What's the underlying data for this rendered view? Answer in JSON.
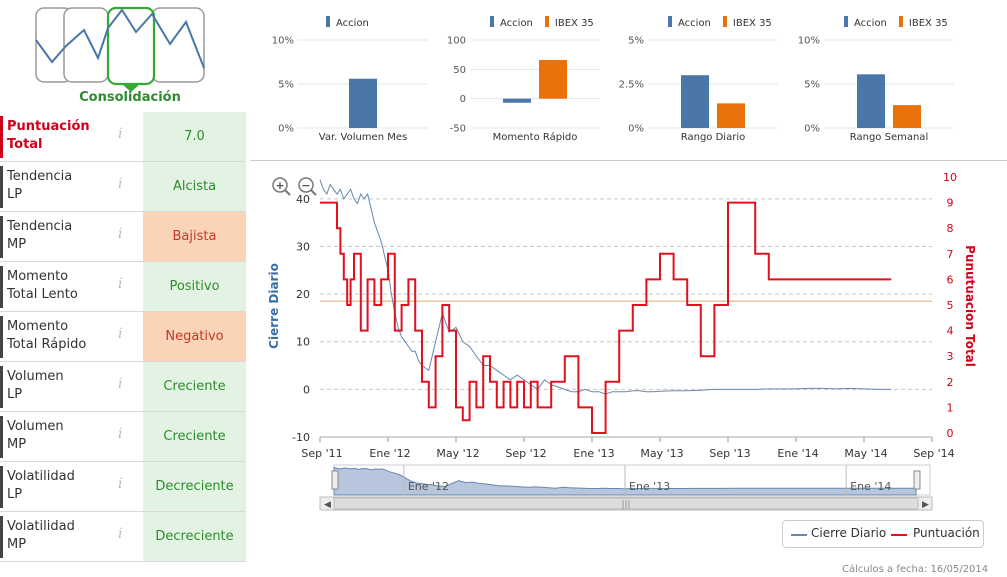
{
  "logo": {
    "label": "Consolidación"
  },
  "colors": {
    "accion": "#4a77a8",
    "ibex": "#e8710a",
    "score_line": "#e0101f",
    "price_line": "#6688b0",
    "ref_line": "#e7c89c",
    "green_bg": "#e3f3e3",
    "orange_bg": "#fbd3b6"
  },
  "scores": [
    {
      "name_l1": "Puntuación",
      "name_l2": "Total",
      "value": "7.0",
      "tone": "green",
      "highlight": true
    },
    {
      "name_l1": "Tendencia",
      "name_l2": "LP",
      "value": "Alcista",
      "tone": "green"
    },
    {
      "name_l1": "Tendencia",
      "name_l2": "MP",
      "value": "Bajista",
      "tone": "orange"
    },
    {
      "name_l1": "Momento",
      "name_l2": "Total Lento",
      "value": "Positivo",
      "tone": "green"
    },
    {
      "name_l1": "Momento",
      "name_l2": "Total Rápido",
      "value": "Negativo",
      "tone": "orange"
    },
    {
      "name_l1": "Volumen",
      "name_l2": "LP",
      "value": "Creciente",
      "tone": "green"
    },
    {
      "name_l1": "Volumen",
      "name_l2": "MP",
      "value": "Creciente",
      "tone": "green"
    },
    {
      "name_l1": "Volatilidad",
      "name_l2": "LP",
      "value": "Decreciente",
      "tone": "green"
    },
    {
      "name_l1": "Volatilidad",
      "name_l2": "MP",
      "value": "Decreciente",
      "tone": "green"
    }
  ],
  "info_glyph": "i",
  "chart_data": [
    {
      "type": "bar",
      "title": "",
      "legend": [
        "Accion"
      ],
      "categories": [
        "Var. Volumen Mes"
      ],
      "series": [
        {
          "name": "Accion",
          "values": [
            5.6
          ]
        }
      ],
      "yticks": [
        "10%",
        "5%",
        "0%"
      ],
      "ylim": [
        0,
        10
      ]
    },
    {
      "type": "bar",
      "title": "",
      "legend": [
        "Accion",
        "IBEX 35"
      ],
      "categories": [
        "Momento Rápido"
      ],
      "series": [
        {
          "name": "Accion",
          "values": [
            -7
          ]
        },
        {
          "name": "IBEX 35",
          "values": [
            66
          ]
        }
      ],
      "yticks": [
        "100",
        "50",
        "0",
        "-50"
      ],
      "ylim": [
        -50,
        100
      ]
    },
    {
      "type": "bar",
      "title": "",
      "legend": [
        "Accion",
        "IBEX 35"
      ],
      "categories": [
        "Rango Diario"
      ],
      "series": [
        {
          "name": "Accion",
          "values": [
            3.0
          ]
        },
        {
          "name": "IBEX 35",
          "values": [
            1.4
          ]
        }
      ],
      "yticks": [
        "5%",
        "2.5%",
        "0%"
      ],
      "ylim": [
        0,
        5
      ]
    },
    {
      "type": "bar",
      "title": "",
      "legend": [
        "Accion",
        "IBEX 35"
      ],
      "categories": [
        "Rango Semanal"
      ],
      "series": [
        {
          "name": "Accion",
          "values": [
            6.1
          ]
        },
        {
          "name": "IBEX 35",
          "values": [
            2.6
          ]
        }
      ],
      "yticks": [
        "10%",
        "5%",
        "0%"
      ],
      "ylim": [
        0,
        10
      ]
    },
    {
      "type": "line",
      "xlabel": "",
      "ylabel_left": "Cierre Diario",
      "ylabel_right": "Punutuacion Total",
      "yticks_left": [
        "40",
        "30",
        "20",
        "10",
        "0",
        "-10"
      ],
      "ylim_left": [
        -10,
        45
      ],
      "yticks_right": [
        "10",
        "9",
        "8",
        "7",
        "6",
        "5",
        "4",
        "3",
        "2",
        "1",
        "0"
      ],
      "ylim_right": [
        0,
        10
      ],
      "xticks": [
        "Sep '11",
        "Ene '12",
        "May '12",
        "Sep '12",
        "Ene '13",
        "May '13",
        "Sep '13",
        "Ene '14",
        "May '14",
        "Sep '14"
      ],
      "reference_line_left": 18.5,
      "series": [
        {
          "name": "Cierre Diario",
          "axis": "left",
          "x": [
            0.0,
            0.05,
            0.1,
            0.15,
            0.2,
            0.25,
            0.3,
            0.35,
            0.4,
            0.45,
            0.5,
            0.55,
            0.6,
            0.65,
            0.7,
            0.75,
            0.8,
            0.85,
            0.9,
            0.95,
            1.0,
            1.05,
            1.1,
            1.15,
            1.2,
            1.25,
            1.3,
            1.35,
            1.4,
            1.45,
            1.5,
            1.6,
            1.7,
            1.8,
            1.9,
            2.0,
            2.1,
            2.2,
            2.3,
            2.4,
            2.5,
            2.6,
            2.7,
            2.8,
            2.9,
            3.0,
            3.1,
            3.2,
            3.3,
            3.4,
            3.5,
            3.6,
            3.7,
            3.8,
            3.9,
            4.0,
            4.1,
            4.2,
            4.3,
            4.4,
            4.5,
            4.6,
            4.7,
            4.8,
            4.9,
            5.0,
            5.2,
            5.4,
            5.6,
            5.8,
            6.0,
            6.2,
            6.4,
            6.6,
            6.8,
            7.0,
            7.2,
            7.4,
            7.6,
            7.8,
            8.0,
            8.2,
            8.4
          ],
          "values": [
            44,
            42,
            41,
            43,
            42,
            41,
            42,
            40,
            41,
            42,
            40,
            39,
            41,
            40,
            41,
            38,
            35,
            33,
            31,
            28,
            25,
            20,
            16,
            13,
            11,
            10,
            9,
            8,
            8,
            6,
            5,
            4,
            10,
            16,
            12,
            13,
            10,
            9,
            7,
            5,
            5,
            4,
            3,
            2,
            3,
            2,
            1,
            0,
            2,
            1,
            0.5,
            0,
            -0.5,
            -0.5,
            0,
            -0.5,
            -0.5,
            -1,
            -0.5,
            -0.5,
            -0.5,
            -0.3,
            -0.3,
            -0.5,
            -0.5,
            -0.4,
            -0.3,
            -0.3,
            -0.2,
            0,
            0,
            0,
            0,
            0.1,
            0.1,
            0.1,
            0.2,
            0.2,
            0.1,
            0.2,
            0.1,
            0,
            0
          ]
        },
        {
          "name": "Puntuación",
          "axis": "right",
          "x": [
            0.0,
            0.25,
            0.3,
            0.35,
            0.4,
            0.45,
            0.5,
            0.6,
            0.7,
            0.8,
            0.9,
            1.0,
            1.1,
            1.2,
            1.3,
            1.4,
            1.5,
            1.6,
            1.7,
            1.8,
            1.9,
            2.0,
            2.1,
            2.2,
            2.3,
            2.4,
            2.5,
            2.6,
            2.7,
            2.8,
            2.9,
            3.0,
            3.1,
            3.2,
            3.4,
            3.6,
            3.8,
            4.0,
            4.2,
            4.4,
            4.6,
            4.8,
            5.0,
            5.2,
            5.4,
            5.6,
            5.8,
            6.0,
            6.2,
            6.4,
            6.6,
            6.8,
            7.0,
            7.2,
            7.4,
            7.6,
            7.8,
            8.0,
            8.2,
            8.4
          ],
          "values": [
            9,
            8,
            7,
            6,
            5,
            6,
            7,
            4,
            6,
            5,
            6,
            7,
            4,
            5,
            6,
            4,
            2,
            1,
            3,
            5,
            4,
            1,
            0.5,
            2,
            1,
            3,
            2,
            1,
            2,
            1,
            2,
            1,
            2,
            1,
            2,
            3,
            1,
            0,
            2,
            4,
            5,
            6,
            7,
            6,
            5,
            3,
            5,
            9,
            9,
            7,
            6,
            6,
            6,
            6,
            6,
            6,
            6,
            6,
            6,
            6
          ]
        }
      ],
      "legend": [
        "Cierre Diario",
        "Puntuación"
      ],
      "navigator_ticks": [
        "Ene '12",
        "Ene '13",
        "Ene '14"
      ]
    }
  ],
  "zoom_in_label": "+",
  "zoom_out_label": "−",
  "footer": "Cálculos a fecha: 16/05/2014"
}
